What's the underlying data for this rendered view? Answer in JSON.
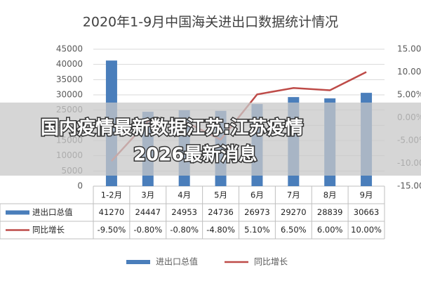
{
  "chart_data": {
    "type": "bar-line",
    "title": "2020年1-9月中国海关进出口数据统计情况",
    "categories": [
      "1-2月",
      "3月",
      "4月",
      "5月",
      "6月",
      "7月",
      "8月",
      "9月"
    ],
    "series": [
      {
        "name": "进出口总值",
        "type": "bar",
        "color": "#4a7ebb",
        "values": [
          41270,
          24447,
          24953,
          24736,
          26973,
          29270,
          28839,
          30663
        ]
      },
      {
        "name": "同比增长",
        "type": "line",
        "axis": "y2",
        "color": "#be4b48",
        "values": [
          -9.5,
          -0.8,
          -0.8,
          -4.8,
          5.1,
          6.5,
          6.0,
          10.0
        ],
        "value_labels": [
          "-9.50%",
          "-0.80%",
          "-0.80%",
          "-4.80%",
          "5.10%",
          "6.50%",
          "6.00%",
          "10.00%"
        ]
      }
    ],
    "ylim": [
      0,
      45000
    ],
    "yticks": [
      0,
      5000,
      10000,
      15000,
      20000,
      25000,
      30000,
      35000,
      40000,
      45000
    ],
    "y2lim": [
      -15,
      15
    ],
    "y2ticks": [
      {
        "value": -15,
        "label": "-15.00%"
      },
      {
        "value": -10,
        "label": "-10.00%"
      },
      {
        "value": -5,
        "label": "-5.00%"
      },
      {
        "value": 0,
        "label": "0.00%"
      },
      {
        "value": 5,
        "label": "5.00%"
      },
      {
        "value": 10,
        "label": "10.00%"
      },
      {
        "value": 15,
        "label": "15.00%"
      }
    ],
    "grid": true,
    "legend": "bottom"
  },
  "banner": {
    "lines": [
      "国内疫情最新数据江苏:江苏疫情",
      "2026最新消息"
    ]
  }
}
